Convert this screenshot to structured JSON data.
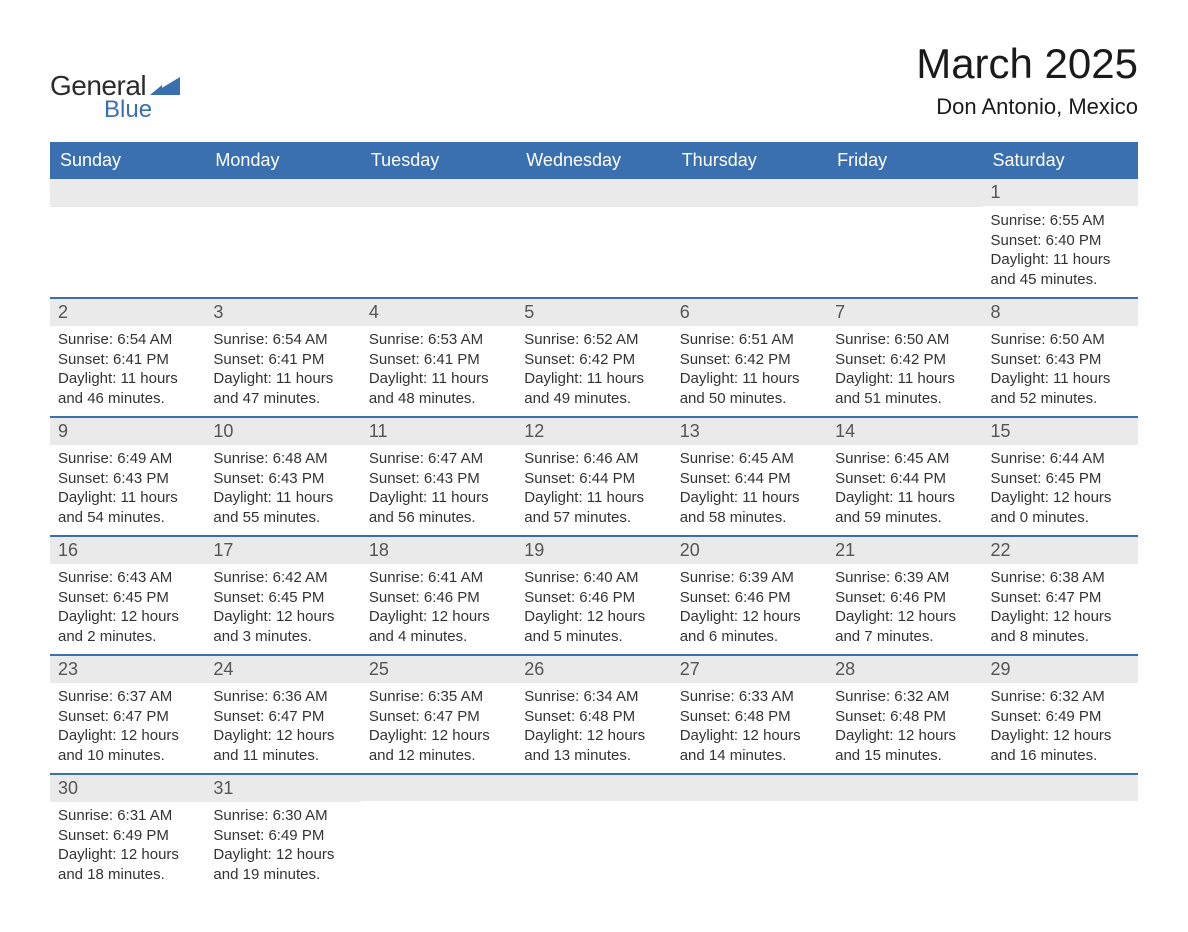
{
  "brand": {
    "word1": "General",
    "word2": "Blue",
    "shape_color": "#3a6fb0",
    "text_color_general": "#2c2c2c",
    "text_color_blue": "#3a6fb0"
  },
  "header": {
    "month_title": "March 2025",
    "location": "Don Antonio, Mexico"
  },
  "colors": {
    "header_bg": "#3a6fb0",
    "header_text": "#ffffff",
    "daynum_bg": "#eaeaea",
    "daynum_text": "#555555",
    "row_divider": "#3a6fb0",
    "body_text": "#333333",
    "page_bg": "#ffffff"
  },
  "typography": {
    "title_fontsize_pt": 32,
    "location_fontsize_pt": 17,
    "weekday_fontsize_pt": 14,
    "daynum_fontsize_pt": 14,
    "body_fontsize_pt": 11,
    "font_family": "Arial"
  },
  "weekdays": [
    "Sunday",
    "Monday",
    "Tuesday",
    "Wednesday",
    "Thursday",
    "Friday",
    "Saturday"
  ],
  "weeks": [
    [
      null,
      null,
      null,
      null,
      null,
      null,
      {
        "n": "1",
        "sr": "Sunrise: 6:55 AM",
        "ss": "Sunset: 6:40 PM",
        "d1": "Daylight: 11 hours",
        "d2": "and 45 minutes."
      }
    ],
    [
      {
        "n": "2",
        "sr": "Sunrise: 6:54 AM",
        "ss": "Sunset: 6:41 PM",
        "d1": "Daylight: 11 hours",
        "d2": "and 46 minutes."
      },
      {
        "n": "3",
        "sr": "Sunrise: 6:54 AM",
        "ss": "Sunset: 6:41 PM",
        "d1": "Daylight: 11 hours",
        "d2": "and 47 minutes."
      },
      {
        "n": "4",
        "sr": "Sunrise: 6:53 AM",
        "ss": "Sunset: 6:41 PM",
        "d1": "Daylight: 11 hours",
        "d2": "and 48 minutes."
      },
      {
        "n": "5",
        "sr": "Sunrise: 6:52 AM",
        "ss": "Sunset: 6:42 PM",
        "d1": "Daylight: 11 hours",
        "d2": "and 49 minutes."
      },
      {
        "n": "6",
        "sr": "Sunrise: 6:51 AM",
        "ss": "Sunset: 6:42 PM",
        "d1": "Daylight: 11 hours",
        "d2": "and 50 minutes."
      },
      {
        "n": "7",
        "sr": "Sunrise: 6:50 AM",
        "ss": "Sunset: 6:42 PM",
        "d1": "Daylight: 11 hours",
        "d2": "and 51 minutes."
      },
      {
        "n": "8",
        "sr": "Sunrise: 6:50 AM",
        "ss": "Sunset: 6:43 PM",
        "d1": "Daylight: 11 hours",
        "d2": "and 52 minutes."
      }
    ],
    [
      {
        "n": "9",
        "sr": "Sunrise: 6:49 AM",
        "ss": "Sunset: 6:43 PM",
        "d1": "Daylight: 11 hours",
        "d2": "and 54 minutes."
      },
      {
        "n": "10",
        "sr": "Sunrise: 6:48 AM",
        "ss": "Sunset: 6:43 PM",
        "d1": "Daylight: 11 hours",
        "d2": "and 55 minutes."
      },
      {
        "n": "11",
        "sr": "Sunrise: 6:47 AM",
        "ss": "Sunset: 6:43 PM",
        "d1": "Daylight: 11 hours",
        "d2": "and 56 minutes."
      },
      {
        "n": "12",
        "sr": "Sunrise: 6:46 AM",
        "ss": "Sunset: 6:44 PM",
        "d1": "Daylight: 11 hours",
        "d2": "and 57 minutes."
      },
      {
        "n": "13",
        "sr": "Sunrise: 6:45 AM",
        "ss": "Sunset: 6:44 PM",
        "d1": "Daylight: 11 hours",
        "d2": "and 58 minutes."
      },
      {
        "n": "14",
        "sr": "Sunrise: 6:45 AM",
        "ss": "Sunset: 6:44 PM",
        "d1": "Daylight: 11 hours",
        "d2": "and 59 minutes."
      },
      {
        "n": "15",
        "sr": "Sunrise: 6:44 AM",
        "ss": "Sunset: 6:45 PM",
        "d1": "Daylight: 12 hours",
        "d2": "and 0 minutes."
      }
    ],
    [
      {
        "n": "16",
        "sr": "Sunrise: 6:43 AM",
        "ss": "Sunset: 6:45 PM",
        "d1": "Daylight: 12 hours",
        "d2": "and 2 minutes."
      },
      {
        "n": "17",
        "sr": "Sunrise: 6:42 AM",
        "ss": "Sunset: 6:45 PM",
        "d1": "Daylight: 12 hours",
        "d2": "and 3 minutes."
      },
      {
        "n": "18",
        "sr": "Sunrise: 6:41 AM",
        "ss": "Sunset: 6:46 PM",
        "d1": "Daylight: 12 hours",
        "d2": "and 4 minutes."
      },
      {
        "n": "19",
        "sr": "Sunrise: 6:40 AM",
        "ss": "Sunset: 6:46 PM",
        "d1": "Daylight: 12 hours",
        "d2": "and 5 minutes."
      },
      {
        "n": "20",
        "sr": "Sunrise: 6:39 AM",
        "ss": "Sunset: 6:46 PM",
        "d1": "Daylight: 12 hours",
        "d2": "and 6 minutes."
      },
      {
        "n": "21",
        "sr": "Sunrise: 6:39 AM",
        "ss": "Sunset: 6:46 PM",
        "d1": "Daylight: 12 hours",
        "d2": "and 7 minutes."
      },
      {
        "n": "22",
        "sr": "Sunrise: 6:38 AM",
        "ss": "Sunset: 6:47 PM",
        "d1": "Daylight: 12 hours",
        "d2": "and 8 minutes."
      }
    ],
    [
      {
        "n": "23",
        "sr": "Sunrise: 6:37 AM",
        "ss": "Sunset: 6:47 PM",
        "d1": "Daylight: 12 hours",
        "d2": "and 10 minutes."
      },
      {
        "n": "24",
        "sr": "Sunrise: 6:36 AM",
        "ss": "Sunset: 6:47 PM",
        "d1": "Daylight: 12 hours",
        "d2": "and 11 minutes."
      },
      {
        "n": "25",
        "sr": "Sunrise: 6:35 AM",
        "ss": "Sunset: 6:47 PM",
        "d1": "Daylight: 12 hours",
        "d2": "and 12 minutes."
      },
      {
        "n": "26",
        "sr": "Sunrise: 6:34 AM",
        "ss": "Sunset: 6:48 PM",
        "d1": "Daylight: 12 hours",
        "d2": "and 13 minutes."
      },
      {
        "n": "27",
        "sr": "Sunrise: 6:33 AM",
        "ss": "Sunset: 6:48 PM",
        "d1": "Daylight: 12 hours",
        "d2": "and 14 minutes."
      },
      {
        "n": "28",
        "sr": "Sunrise: 6:32 AM",
        "ss": "Sunset: 6:48 PM",
        "d1": "Daylight: 12 hours",
        "d2": "and 15 minutes."
      },
      {
        "n": "29",
        "sr": "Sunrise: 6:32 AM",
        "ss": "Sunset: 6:49 PM",
        "d1": "Daylight: 12 hours",
        "d2": "and 16 minutes."
      }
    ],
    [
      {
        "n": "30",
        "sr": "Sunrise: 6:31 AM",
        "ss": "Sunset: 6:49 PM",
        "d1": "Daylight: 12 hours",
        "d2": "and 18 minutes."
      },
      {
        "n": "31",
        "sr": "Sunrise: 6:30 AM",
        "ss": "Sunset: 6:49 PM",
        "d1": "Daylight: 12 hours",
        "d2": "and 19 minutes."
      },
      null,
      null,
      null,
      null,
      null
    ]
  ]
}
